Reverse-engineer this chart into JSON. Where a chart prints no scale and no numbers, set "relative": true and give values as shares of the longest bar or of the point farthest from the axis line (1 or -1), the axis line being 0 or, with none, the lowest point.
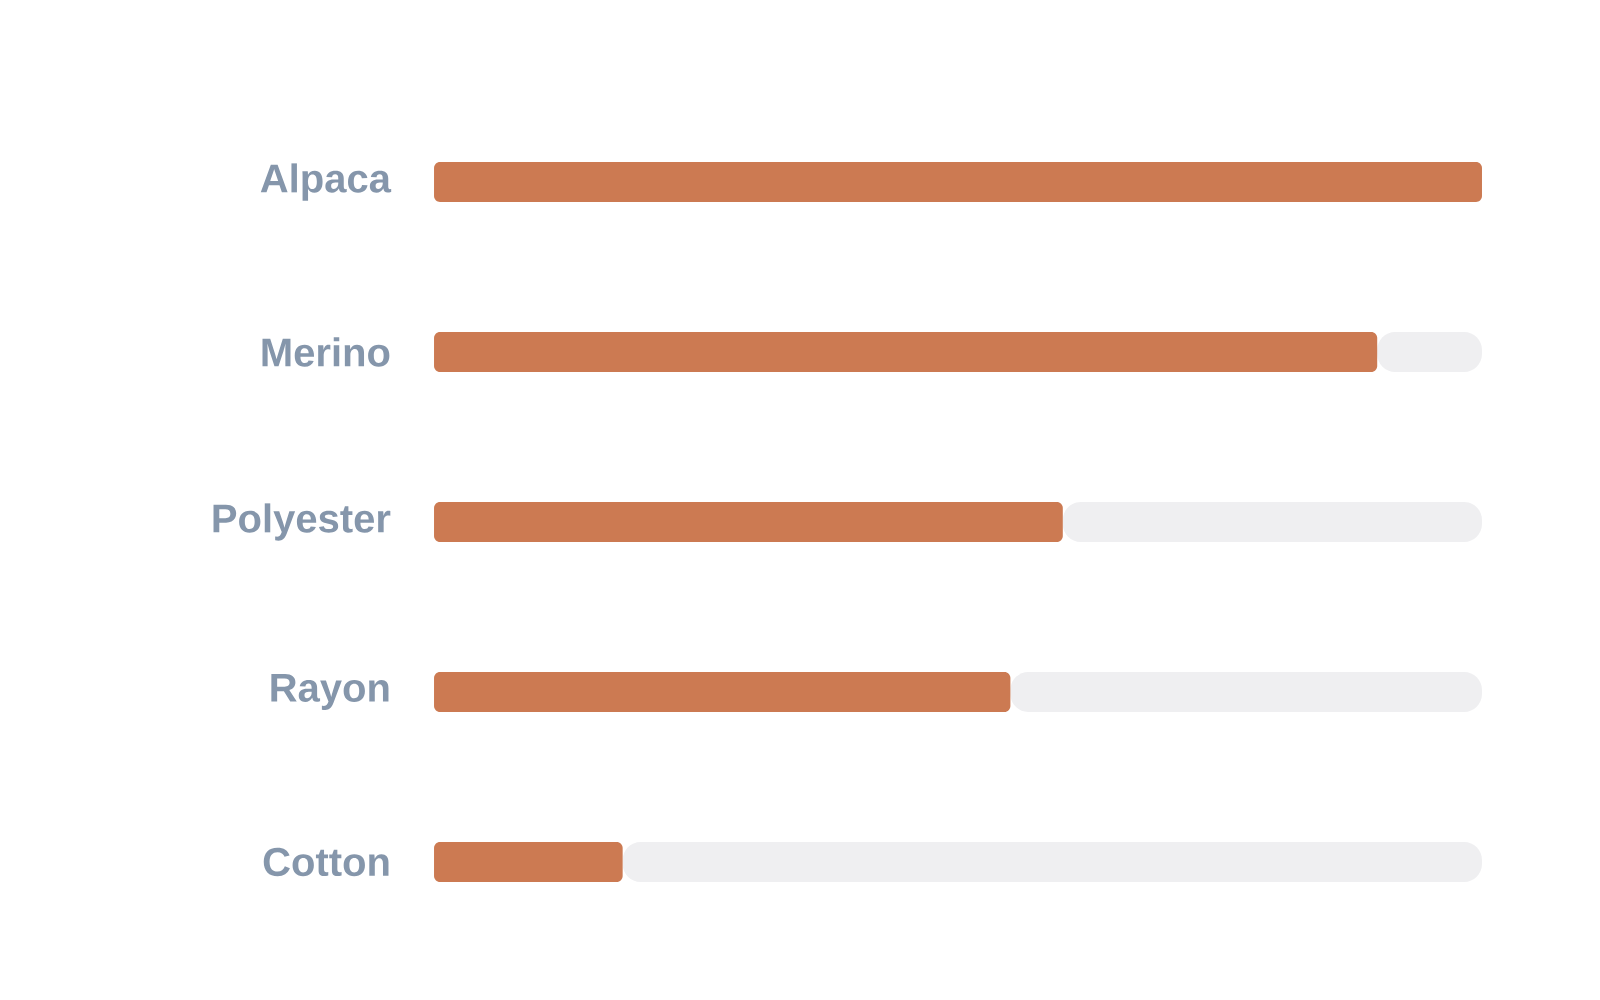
{
  "chart_data": {
    "type": "bar",
    "orientation": "horizontal",
    "relative": true,
    "stacked": true,
    "categories": [
      "Alpaca",
      "Merino",
      "Polyester",
      "Rayon",
      "Cotton"
    ],
    "series": [
      {
        "color": "#cc7a52",
        "values": [
          1,
          0.9,
          0.6,
          0.55,
          0.18
        ]
      },
      {
        "color": "#efeff1",
        "values": [
          null,
          0.1,
          0.4,
          0.45,
          0.82
        ]
      }
    ]
  }
}
